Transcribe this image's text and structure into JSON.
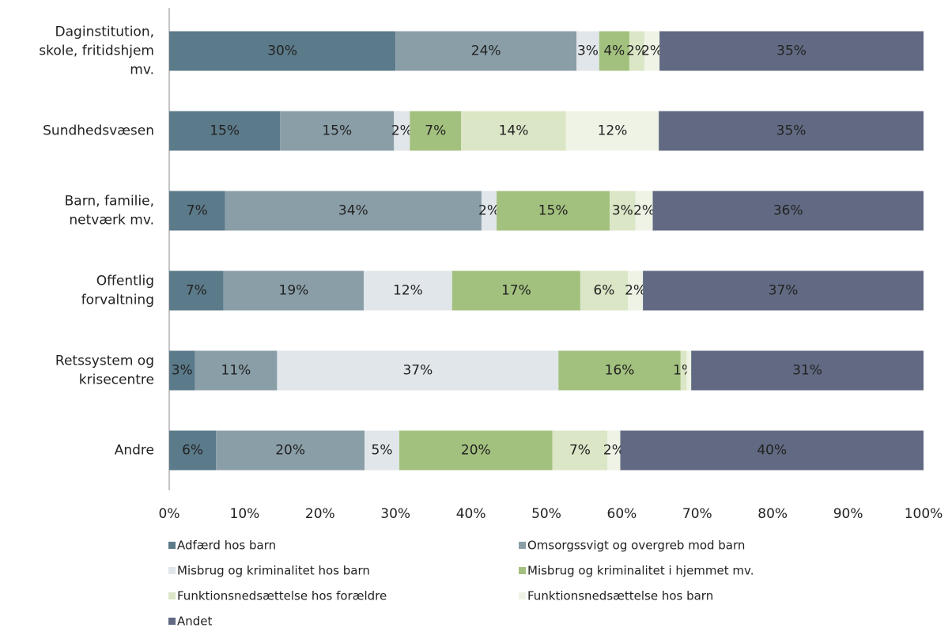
{
  "chart_data": {
    "type": "stacked-bar-horizontal",
    "categories": [
      "Daginstitution,\nskole, fritidshjem\nmv.",
      "Sundhedsvæsen",
      "Barn, familie,\nnetværk mv.",
      "Offentlig\nforvaltning",
      "Retssystem og\nkrisecentre",
      "Andre"
    ],
    "series": [
      {
        "name": "Adfærd hos barn",
        "color": "#5b7a8a",
        "values": [
          30,
          14.7,
          7.4,
          7.2,
          3.4,
          6.2
        ],
        "value_labels": [
          "30%",
          "15%",
          "7%",
          "7%",
          "3%",
          "6%"
        ]
      },
      {
        "name": "Omsorgssvigt og overgreb mod barn",
        "color": "#8a9ea8",
        "values": [
          24,
          15.1,
          34,
          18.6,
          10.9,
          19.7
        ],
        "value_labels": [
          "24%",
          "15%",
          "34%",
          "19%",
          "11%",
          "20%"
        ]
      },
      {
        "name": "Misbrug og kriminalitet hos barn",
        "color": "#e1e6ea",
        "values": [
          3,
          2.1,
          2,
          11.7,
          37.3,
          4.6
        ],
        "value_labels": [
          "3%",
          "2%",
          "2%",
          "12%",
          "37%",
          "5%"
        ]
      },
      {
        "name": "Misbrug og kriminalitet i hjemmet mv.",
        "color": "#a3c17e",
        "values": [
          4,
          6.8,
          15,
          17,
          16.2,
          20.3
        ],
        "value_labels": [
          "4%",
          "7%",
          "15%",
          "17%",
          "16%",
          "20%"
        ]
      },
      {
        "name": "Funktionsnedsættelse hos forældre",
        "color": "#dbe6c6",
        "values": [
          2,
          13.9,
          3.4,
          6.3,
          0.8,
          7.3
        ],
        "value_labels": [
          "2%",
          "14%",
          "3%",
          "6%",
          "1%",
          "7%"
        ]
      },
      {
        "name": "Funktionsnedsættelse hos barn",
        "color": "#eef3e6",
        "values": [
          2,
          12.3,
          2.3,
          2,
          0.6,
          1.7
        ],
        "value_labels": [
          "2%",
          "12%",
          "2%",
          "2%",
          null,
          "2%"
        ]
      },
      {
        "name": "Andet",
        "color": "#616a82",
        "values": [
          35,
          35.1,
          35.9,
          37.2,
          30.8,
          40.2
        ],
        "value_labels": [
          "35%",
          "35%",
          "36%",
          "37%",
          "31%",
          "40%"
        ]
      }
    ],
    "xlim": [
      0,
      100
    ],
    "xticks": [
      {
        "value": 0,
        "label": "0%"
      },
      {
        "value": 10,
        "label": "10%"
      },
      {
        "value": 20,
        "label": "20%"
      },
      {
        "value": 30,
        "label": "30%"
      },
      {
        "value": 40,
        "label": "40%"
      },
      {
        "value": 50,
        "label": "50%"
      },
      {
        "value": 60,
        "label": "60%"
      },
      {
        "value": 70,
        "label": "70%"
      },
      {
        "value": 80,
        "label": "80%"
      },
      {
        "value": 90,
        "label": "90%"
      },
      {
        "value": 100,
        "label": "100%"
      }
    ]
  }
}
